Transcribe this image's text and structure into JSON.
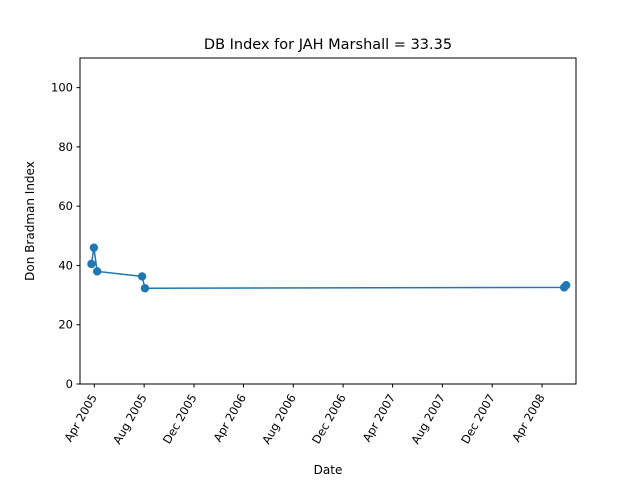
{
  "chart_data": {
    "type": "line",
    "title": "DB Index for JAH Marshall = 33.35",
    "xlabel": "Date",
    "ylabel": "Don Bradman Index",
    "ylim": [
      0,
      110
    ],
    "xlim": [
      "2005-02-25",
      "2008-06-23"
    ],
    "yticks": [
      0,
      20,
      40,
      60,
      80,
      100
    ],
    "xticks": [
      {
        "date": "2005-04-01",
        "label": "Apr 2005"
      },
      {
        "date": "2005-08-01",
        "label": "Aug 2005"
      },
      {
        "date": "2005-12-01",
        "label": "Dec 2005"
      },
      {
        "date": "2006-04-01",
        "label": "Apr 2006"
      },
      {
        "date": "2006-08-01",
        "label": "Aug 2006"
      },
      {
        "date": "2006-12-01",
        "label": "Dec 2006"
      },
      {
        "date": "2007-04-01",
        "label": "Apr 2007"
      },
      {
        "date": "2007-08-01",
        "label": "Aug 2007"
      },
      {
        "date": "2007-12-01",
        "label": "Dec 2007"
      },
      {
        "date": "2008-04-01",
        "label": "Apr 2008"
      }
    ],
    "grid": false,
    "series": [
      {
        "color": "#1f77b4",
        "points": [
          {
            "x": "2005-03-25",
            "y": 40.5
          },
          {
            "x": "2005-03-31",
            "y": 46.0
          },
          {
            "x": "2005-04-08",
            "y": 38.0
          },
          {
            "x": "2005-07-27",
            "y": 36.3
          },
          {
            "x": "2005-08-03",
            "y": 32.3
          },
          {
            "x": "2008-05-25",
            "y": 32.6
          },
          {
            "x": "2008-05-30",
            "y": 33.35
          }
        ]
      }
    ]
  }
}
